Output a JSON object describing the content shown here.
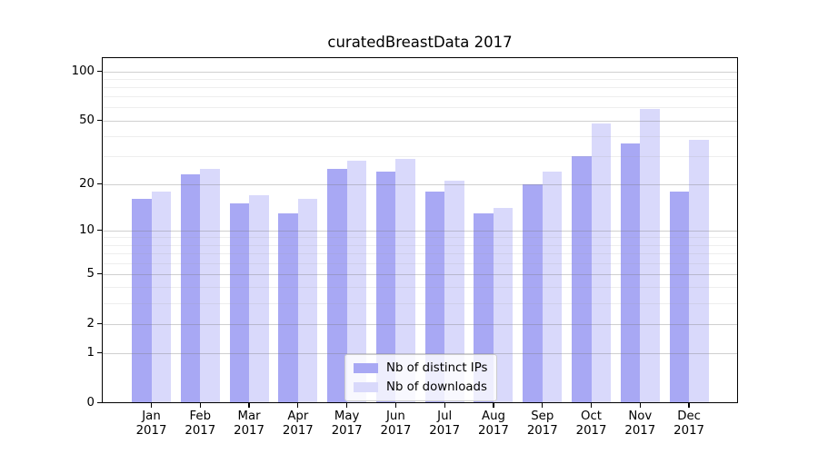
{
  "chart_data": {
    "type": "bar",
    "title": "curatedBreastData 2017",
    "categories": [
      "Jan",
      "Feb",
      "Mar",
      "Apr",
      "May",
      "Jun",
      "Jul",
      "Aug",
      "Sep",
      "Oct",
      "Nov",
      "Dec"
    ],
    "category_year": "2017",
    "series": [
      {
        "name": "Nb of distinct IPs",
        "color": "#a8a8f4",
        "values": [
          16,
          23,
          15,
          13,
          25,
          24,
          18,
          13,
          20,
          30,
          36,
          18
        ]
      },
      {
        "name": "Nb of downloads",
        "color": "#d9d9fb",
        "values": [
          18,
          25,
          17,
          16,
          28,
          29,
          21,
          14,
          24,
          48,
          59,
          38
        ]
      }
    ],
    "y_axis": {
      "scale": "log1p",
      "tick_values": [
        0,
        1,
        2,
        5,
        10,
        20,
        50,
        100
      ],
      "tick_labels": [
        "0",
        "1",
        "2",
        "5",
        "10",
        "20",
        "50",
        "100"
      ],
      "minor_gridlines": [
        3,
        4,
        6,
        7,
        8,
        9,
        30,
        40,
        60,
        70,
        80,
        90
      ],
      "ylim": [
        0,
        122
      ]
    },
    "grid": true,
    "legend_position": "lower center"
  }
}
